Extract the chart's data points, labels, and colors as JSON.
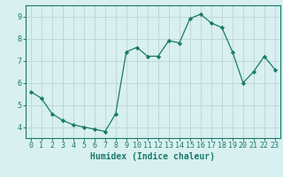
{
  "x": [
    0,
    1,
    2,
    3,
    4,
    5,
    6,
    7,
    8,
    9,
    10,
    11,
    12,
    13,
    14,
    15,
    16,
    17,
    18,
    19,
    20,
    21,
    22,
    23
  ],
  "y": [
    5.6,
    5.3,
    4.6,
    4.3,
    4.1,
    4.0,
    3.9,
    3.8,
    4.6,
    7.4,
    7.6,
    7.2,
    7.2,
    7.9,
    7.8,
    8.9,
    9.1,
    8.7,
    8.5,
    7.4,
    6.0,
    6.5,
    7.2,
    6.6
  ],
  "line_color": "#1a7a6a",
  "marker": "D",
  "marker_size": 2.2,
  "bg_color": "#d8f0f0",
  "grid_color": "#c0d8d8",
  "xlabel": "Humidex (Indice chaleur)",
  "ylabel": "",
  "ylim": [
    3.5,
    9.5
  ],
  "xlim": [
    -0.5,
    23.5
  ],
  "yticks": [
    4,
    5,
    6,
    7,
    8,
    9
  ],
  "xticks": [
    0,
    1,
    2,
    3,
    4,
    5,
    6,
    7,
    8,
    9,
    10,
    11,
    12,
    13,
    14,
    15,
    16,
    17,
    18,
    19,
    20,
    21,
    22,
    23
  ],
  "tick_color": "#1a7a6a",
  "label_fontsize": 7.0,
  "tick_fontsize": 6.0
}
